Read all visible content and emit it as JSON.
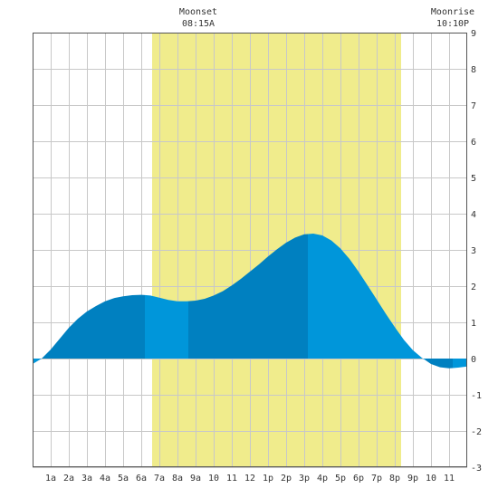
{
  "colors": {
    "daylight": "#F0EC8C",
    "tide_dark": "#0080C0",
    "tide_light": "#0096DA",
    "grid": "#C8C8C8",
    "frame": "#555555",
    "text": "#333333"
  },
  "annotations": {
    "moonset_title": "Moonset",
    "moonset_time": "08:15A",
    "moonrise_title": "Moonrise",
    "moonrise_time": "10:10P"
  },
  "chart_data": {
    "type": "area",
    "x_tick_labels": [
      "1a",
      "2a",
      "3a",
      "4a",
      "5a",
      "6a",
      "7a",
      "8a",
      "9a",
      "10",
      "11",
      "12",
      "1p",
      "2p",
      "3p",
      "4p",
      "5p",
      "6p",
      "7p",
      "8p",
      "9p",
      "10",
      "11"
    ],
    "x_range_hours": [
      0,
      24
    ],
    "y_ticks": [
      9,
      8,
      7,
      6,
      5,
      4,
      3,
      2,
      1,
      0,
      -1,
      -2,
      -3
    ],
    "ylim": [
      -3,
      9
    ],
    "grid": true,
    "daylight_hours": [
      6.6,
      20.35
    ],
    "tide_events": [
      {
        "hour": 0.5,
        "value": 0.0
      },
      {
        "hour": 6.2,
        "value": 1.75
      },
      {
        "hour": 8.6,
        "value": 1.58
      },
      {
        "hour": 15.2,
        "value": 3.45
      },
      {
        "hour": 21.7,
        "value": 0.0
      },
      {
        "hour": 23.2,
        "value": -0.27
      },
      {
        "hour": 24.0,
        "value": -0.22
      }
    ],
    "series": [
      {
        "x": [
          0.0,
          0.5,
          1.0,
          1.5,
          2.0,
          2.5,
          3.0,
          3.5,
          4.0,
          4.5,
          5.0,
          5.5,
          6.0,
          6.5,
          7.0,
          7.5,
          8.0,
          8.5,
          9.0,
          9.5,
          10.0,
          10.5,
          11.0,
          11.5,
          12.0,
          12.5,
          13.0,
          13.5,
          14.0,
          14.5,
          15.0,
          15.5,
          16.0,
          16.5,
          17.0,
          17.5,
          18.0,
          18.5,
          19.0,
          19.5,
          20.0,
          20.5,
          21.0,
          21.5,
          22.0,
          22.5,
          23.0,
          23.5,
          24.0
        ],
        "values": [
          -0.15,
          0.0,
          0.25,
          0.55,
          0.85,
          1.1,
          1.3,
          1.45,
          1.58,
          1.67,
          1.72,
          1.75,
          1.76,
          1.74,
          1.68,
          1.62,
          1.58,
          1.58,
          1.6,
          1.65,
          1.74,
          1.86,
          2.02,
          2.2,
          2.4,
          2.6,
          2.82,
          3.02,
          3.2,
          3.34,
          3.43,
          3.45,
          3.4,
          3.26,
          3.04,
          2.75,
          2.4,
          2.02,
          1.63,
          1.24,
          0.87,
          0.52,
          0.23,
          0.02,
          -0.15,
          -0.24,
          -0.27,
          -0.25,
          -0.22
        ]
      }
    ]
  }
}
